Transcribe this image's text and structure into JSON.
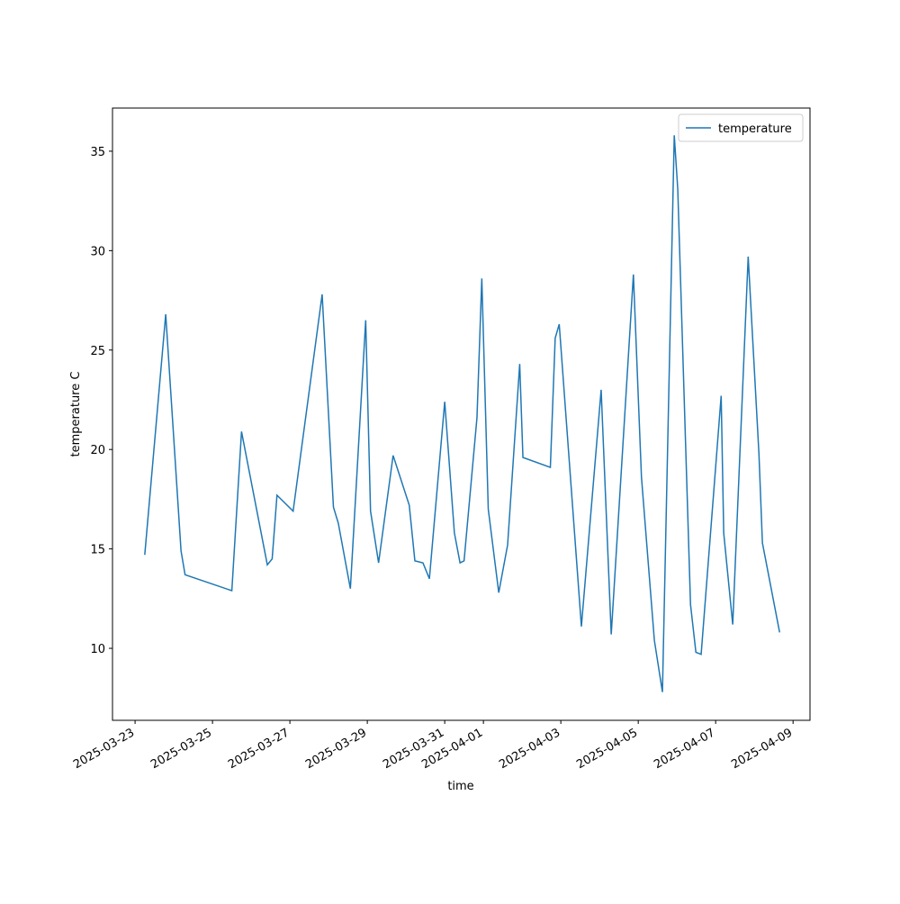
{
  "chart_data": {
    "type": "line",
    "xlabel": "time",
    "ylabel": "temperature C",
    "x": [
      "2025-03-23T06:00",
      "2025-03-23T19:00",
      "2025-03-24T04:30",
      "2025-03-24T07:00",
      "2025-03-25T12:00",
      "2025-03-25T18:00",
      "2025-03-26T10:00",
      "2025-03-26T13:00",
      "2025-03-26T16:00",
      "2025-03-27T02:00",
      "2025-03-27T20:00",
      "2025-03-28T03:00",
      "2025-03-28T06:00",
      "2025-03-28T13:30",
      "2025-03-28T23:00",
      "2025-03-29T02:00",
      "2025-03-29T07:00",
      "2025-03-29T16:00",
      "2025-03-30T02:00",
      "2025-03-30T05:30",
      "2025-03-30T10:30",
      "2025-03-30T14:30",
      "2025-03-31T00:00",
      "2025-03-31T06:00",
      "2025-03-31T09:30",
      "2025-03-31T12:00",
      "2025-03-31T20:00",
      "2025-03-31T23:00",
      "2025-04-01T03:00",
      "2025-04-01T09:30",
      "2025-04-01T15:00",
      "2025-04-01T22:30",
      "2025-04-02T00:30",
      "2025-04-02T17:30",
      "2025-04-02T20:30",
      "2025-04-02T23:00",
      "2025-04-03T12:45",
      "2025-04-04T01:00",
      "2025-04-04T07:15",
      "2025-04-04T21:00",
      "2025-04-05T02:00",
      "2025-04-05T10:00",
      "2025-04-05T15:00",
      "2025-04-05T22:20",
      "2025-04-06T00:30",
      "2025-04-06T08:25",
      "2025-04-06T11:45",
      "2025-04-06T15:00",
      "2025-04-07T03:25",
      "2025-04-07T05:00",
      "2025-04-07T10:35",
      "2025-04-07T20:10",
      "2025-04-08T02:50",
      "2025-04-08T05:00",
      "2025-04-08T15:40"
    ],
    "series": [
      {
        "name": "temperature",
        "color": "#1f77b4",
        "values": [
          14.7,
          26.8,
          14.9,
          13.7,
          12.9,
          20.9,
          14.2,
          14.5,
          17.7,
          16.9,
          27.8,
          17.1,
          16.3,
          13.0,
          26.5,
          16.9,
          14.3,
          19.7,
          17.2,
          14.4,
          14.3,
          13.5,
          22.4,
          15.8,
          14.3,
          14.4,
          21.6,
          28.6,
          17.0,
          12.8,
          15.2,
          24.3,
          19.6,
          19.1,
          25.6,
          26.3,
          11.1,
          23.0,
          10.7,
          28.8,
          18.6,
          10.4,
          7.8,
          35.8,
          33.1,
          12.2,
          9.8,
          9.7,
          22.7,
          15.8,
          11.2,
          29.7,
          19.8,
          15.3,
          10.8
        ]
      }
    ],
    "xlim": [
      "2025-03-22T10:00",
      "2025-04-09T10:30"
    ],
    "xticks": [
      "2025-03-23",
      "2025-03-25",
      "2025-03-27",
      "2025-03-29",
      "2025-03-31",
      "2025-04-01",
      "2025-04-03",
      "2025-04-05",
      "2025-04-07",
      "2025-04-09"
    ],
    "ylim": [
      6.38,
      37.17
    ],
    "yticks": [
      10,
      15,
      20,
      25,
      30,
      35
    ],
    "grid": false,
    "legend": "upper right"
  }
}
